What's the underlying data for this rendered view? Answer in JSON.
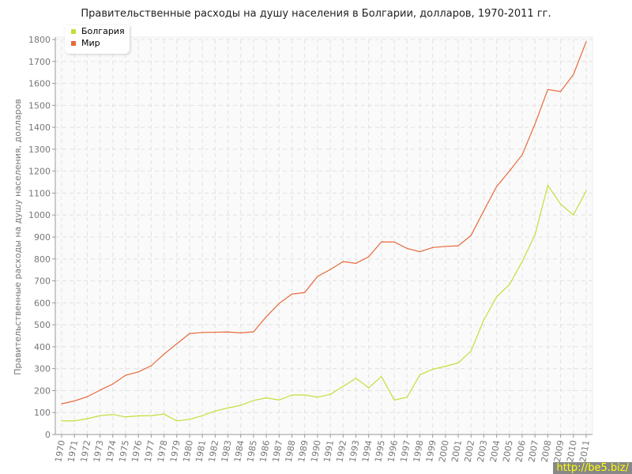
{
  "chart_data": {
    "type": "line",
    "title": "Правительственные расходы на душу населения в Болгарии, долларов, 1970-2011 гг.",
    "ylabel": "Правительственные расходы на душу населения, долларов",
    "xlabel": "",
    "ylim": [
      0,
      1800
    ],
    "yticks": [
      0,
      100,
      200,
      300,
      400,
      500,
      600,
      700,
      800,
      900,
      1000,
      1100,
      1200,
      1300,
      1400,
      1500,
      1600,
      1700,
      1800
    ],
    "grid": true,
    "legend_position": "top-left",
    "x": [
      1970,
      1971,
      1972,
      1973,
      1974,
      1975,
      1976,
      1977,
      1978,
      1979,
      1980,
      1981,
      1982,
      1983,
      1984,
      1985,
      1986,
      1987,
      1988,
      1989,
      1990,
      1991,
      1992,
      1993,
      1994,
      1995,
      1996,
      1997,
      1998,
      1999,
      2000,
      2001,
      2002,
      2003,
      2004,
      2005,
      2006,
      2007,
      2008,
      2009,
      2010,
      2011
    ],
    "series": [
      {
        "name": "Болгария",
        "color": "#c5dd3a",
        "values": [
          62,
          62,
          72,
          86,
          91,
          80,
          85,
          86,
          93,
          62,
          69,
          86,
          107,
          121,
          133,
          155,
          167,
          157,
          180,
          180,
          170,
          183,
          219,
          256,
          213,
          264,
          157,
          170,
          272,
          297,
          311,
          326,
          380,
          522,
          628,
          683,
          788,
          910,
          1135,
          1050,
          1000,
          1110
        ]
      },
      {
        "name": "Мир",
        "color": "#e8693a",
        "values": [
          140,
          153,
          172,
          202,
          230,
          270,
          285,
          313,
          366,
          413,
          460,
          465,
          466,
          467,
          463,
          468,
          537,
          597,
          640,
          647,
          720,
          752,
          788,
          780,
          810,
          878,
          877,
          848,
          833,
          852,
          857,
          860,
          907,
          1020,
          1130,
          1200,
          1275,
          1415,
          1572,
          1563,
          1640,
          1790
        ]
      }
    ]
  },
  "watermark": "http://be5.biz/"
}
